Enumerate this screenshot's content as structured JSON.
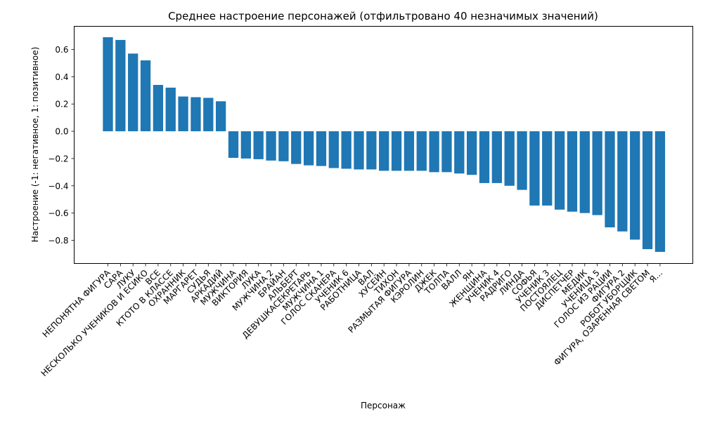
{
  "chart_data": {
    "type": "bar",
    "title": "Среднее настроение персонажей (отфильтровано 40 незначимых значений)",
    "xlabel": "Персонаж",
    "ylabel": "Настроение (-1: негативное, 1: позитивное)",
    "ylim": [
      -0.97,
      0.77
    ],
    "yticks": [
      -0.8,
      -0.6,
      -0.4,
      -0.2,
      0.0,
      0.2,
      0.4,
      0.6
    ],
    "grid": false,
    "bar_color": "#1f77b4",
    "categories": [
      "НЕПОНЯТНА ФИГУРА",
      "САРА",
      "ЛУКУ",
      "НЕСКОЛЬКО УЧЕНИКОВ И ЕСИКО",
      "ВСЕ",
      "КТОТО В КЛАССЕ",
      "ОХРАННИК",
      "МАРГАРЕТ",
      "СУДЬЯ",
      "АРКАДИЙ",
      "МУЖЧИНА",
      "ВИКТОРИЯ",
      "ЛУКА",
      "МУЖЧИНА 2",
      "БРАЙАН",
      "АЛЬБЕРТ",
      "ДЕВУШКАСЕКРЕТАРЬ",
      "МУЖЧИНА 1",
      "ГОЛОС СКАНЕРА",
      "УЧЕНИК 6",
      "РАБОТНИЦА",
      "ВАЛ",
      "ХУСЕЙН",
      "ТИХОН",
      "РАЗМЫТАЯ ФИГУРА",
      "КЭРОЛИН",
      "ДЖЕК",
      "ТОЛПА",
      "ВАЛЛ",
      "ЯН",
      "ЖЕНЩИНА",
      "УЧЕНИК 4",
      "РАДРИГО",
      "ЛИНДА",
      "СОФЬЯ",
      "УЧЕНИК 3",
      "ПОСТОЯЛЕЦ",
      "ДИСПЕТЧЕР",
      "МЕДИК",
      "УЧЕНИЦА 5",
      "ГОЛОС ИЗ РАЦИИ",
      "ФИГУРА 2",
      "РОБОТ УБОРЩИК",
      "ФИГУРА, ОЗАРЕННАЯ СВЕТОМ",
      "Я..."
    ],
    "values": [
      0.69,
      0.67,
      0.57,
      0.52,
      0.34,
      0.32,
      0.255,
      0.25,
      0.245,
      0.22,
      -0.195,
      -0.2,
      -0.205,
      -0.215,
      -0.22,
      -0.24,
      -0.25,
      -0.255,
      -0.27,
      -0.275,
      -0.28,
      -0.28,
      -0.29,
      -0.29,
      -0.29,
      -0.29,
      -0.3,
      -0.3,
      -0.31,
      -0.32,
      -0.38,
      -0.38,
      -0.4,
      -0.43,
      -0.545,
      -0.545,
      -0.575,
      -0.59,
      -0.6,
      -0.615,
      -0.705,
      -0.735,
      -0.795,
      -0.865,
      -0.885
    ]
  }
}
